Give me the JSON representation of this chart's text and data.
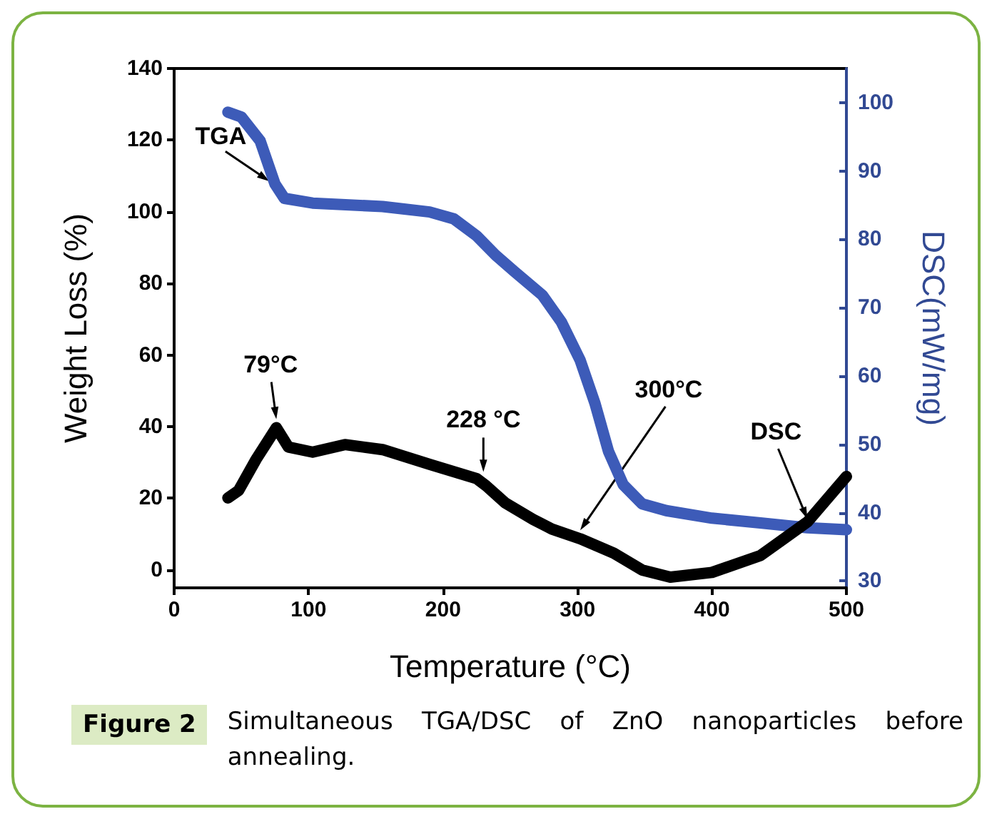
{
  "chart_data": {
    "type": "line",
    "xlabel": "Temperature (°C)",
    "ylabel": "Weight Loss (%)",
    "y2label": "DSC(mW/mg)",
    "xlim": [
      0,
      500
    ],
    "xticks": [
      0,
      100,
      200,
      300,
      400,
      500
    ],
    "ylim": [
      -5,
      140
    ],
    "yticks": [
      0,
      20,
      40,
      60,
      80,
      100,
      120,
      140
    ],
    "y2lim": [
      29,
      105
    ],
    "y2ticks": [
      30,
      40,
      50,
      60,
      70,
      80,
      90,
      100
    ],
    "grid": false,
    "legend": false,
    "marker": "none",
    "line_style": "solid",
    "series": [
      {
        "name": "TGA",
        "color": "#3d5bb8",
        "axis": "y2",
        "x": [
          40,
          50,
          64,
          75,
          82,
          103,
          155,
          190,
          208,
          225,
          239,
          253,
          274,
          288,
          302,
          313,
          323,
          334,
          348,
          366,
          400,
          436,
          471,
          500
        ],
        "values": [
          98.6,
          97.9,
          94.4,
          88.1,
          86.0,
          85.3,
          84.8,
          84.0,
          83.0,
          80.5,
          77.7,
          75.3,
          71.8,
          67.9,
          62.3,
          56.0,
          49.0,
          44.1,
          41.3,
          40.3,
          39.2,
          38.5,
          37.8,
          37.5
        ]
      },
      {
        "name": "DSC",
        "color": "#000000",
        "x": [
          40,
          48,
          61,
          76,
          85,
          103,
          127,
          155,
          190,
          225,
          232,
          246,
          267,
          281,
          302,
          327,
          348,
          369,
          400,
          436,
          471,
          500
        ],
        "values": [
          20.1,
          22.2,
          30.9,
          39.7,
          34.3,
          32.9,
          35.0,
          33.6,
          29.5,
          25.5,
          23.5,
          18.8,
          14.1,
          11.4,
          8.7,
          4.7,
          0.0,
          -2.0,
          -0.7,
          4.0,
          13.4,
          26.1
        ]
      }
    ],
    "annotations": [
      {
        "text": "79°C",
        "x": 76,
        "y": 39.7
      },
      {
        "text": "228 °C",
        "x": 230,
        "y": 25
      },
      {
        "text": "300°C",
        "x": 302,
        "y": 8.7
      },
      "Figure 2",
      "Simultaneous TGA/DSC of ZnO nanoparticles before annealing."
    ]
  }
}
